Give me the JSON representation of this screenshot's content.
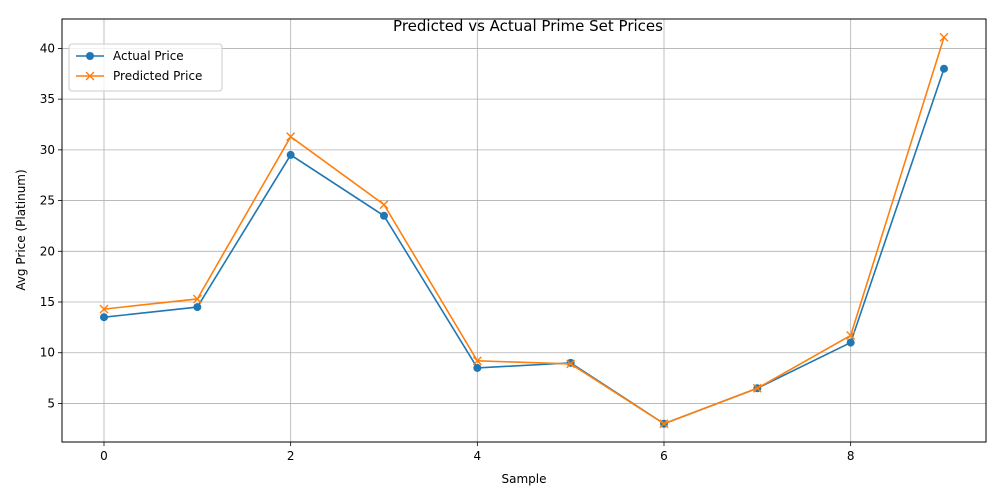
{
  "chart_data": {
    "type": "line",
    "title": "Predicted vs Actual Prime Set Prices",
    "xlabel": "Sample",
    "ylabel": "Avg Price (Platinum)",
    "x": [
      0,
      1,
      2,
      3,
      4,
      5,
      6,
      7,
      8,
      9
    ],
    "xlim": [
      -0.45,
      9.45
    ],
    "ylim": [
      1.2,
      42.9
    ],
    "x_ticks": [
      0,
      2,
      4,
      6,
      8
    ],
    "y_ticks": [
      5,
      10,
      15,
      20,
      25,
      30,
      35,
      40
    ],
    "grid": true,
    "legend_position": "upper left",
    "series": [
      {
        "name": "Actual Price",
        "color": "#1f77b4",
        "marker": "circle",
        "values": [
          13.5,
          14.5,
          29.5,
          23.5,
          8.5,
          9.0,
          3.0,
          6.5,
          11.0,
          38.0
        ]
      },
      {
        "name": "Predicted Price",
        "color": "#ff7f0e",
        "marker": "x",
        "values": [
          14.3,
          15.3,
          31.3,
          24.6,
          9.2,
          8.9,
          3.0,
          6.5,
          11.7,
          41.1
        ]
      }
    ]
  }
}
